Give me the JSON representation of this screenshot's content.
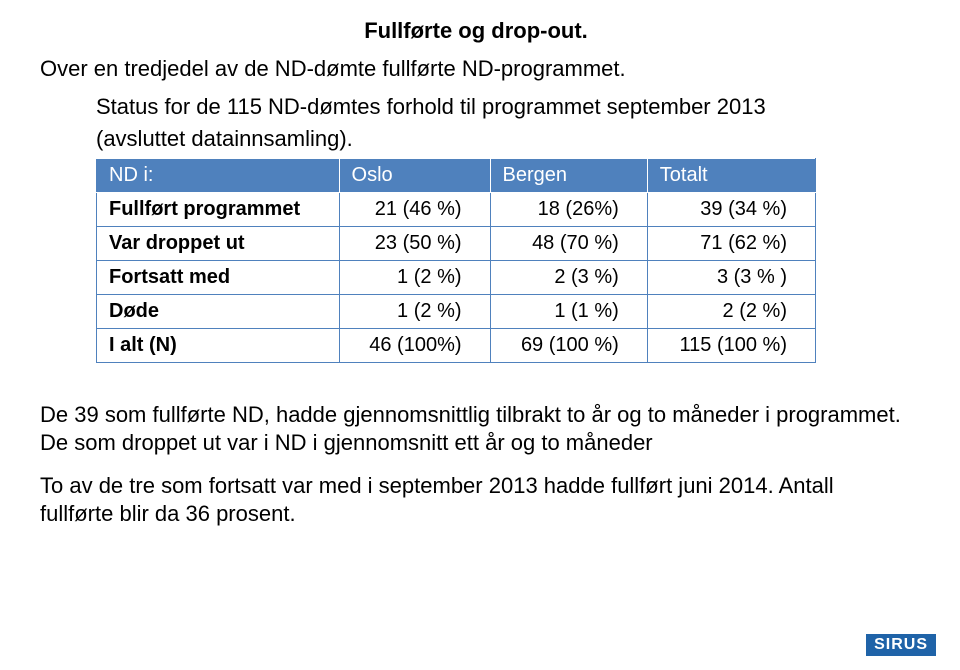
{
  "title": "Fullførte og drop-out.",
  "subtitle": "Over en tredjedel av de ND-dømte fullførte ND-programmet.",
  "caption_line1": "Status for de 115 ND-dømtes forhold til programmet september 2013",
  "caption_line2": "(avsluttet datainnsamling).",
  "table": {
    "type": "table",
    "header_bg": "#4f81bd",
    "header_fg": "#ffffff",
    "border_color": "#4f81bd",
    "font_size": 20,
    "columns": [
      "ND i:",
      "Oslo",
      "Bergen",
      "Totalt"
    ],
    "rows": [
      [
        "Fullført programmet",
        "21 (46 %)",
        "18 (26%)",
        "39 (34 %)"
      ],
      [
        "Var droppet ut",
        "23 (50 %)",
        "48 (70 %)",
        "71 (62 %)"
      ],
      [
        "Fortsatt med",
        "1 (2 %)",
        "2 (3 %)",
        "3 (3 % )"
      ],
      [
        "Døde",
        "1 (2 %)",
        "1 (1 %)",
        "2 (2 %)"
      ],
      [
        "I alt (N)",
        "46 (100%)",
        "69 (100 %)",
        "115 (100 %)"
      ]
    ]
  },
  "para1": "De 39 som fullførte ND, hadde gjennomsnittlig tilbrakt to år og to måneder i programmet. De som droppet ut var i ND i gjennomsnitt ett år og to måneder",
  "para2": "To av de tre som fortsatt var med i september 2013 hadde fullført juni 2014. Antall fullførte blir da 36 prosent.",
  "badge": "SIRUS",
  "colors": {
    "background": "#ffffff",
    "text": "#000000",
    "badge_bg": "#1f63a8",
    "badge_fg": "#ffffff"
  }
}
